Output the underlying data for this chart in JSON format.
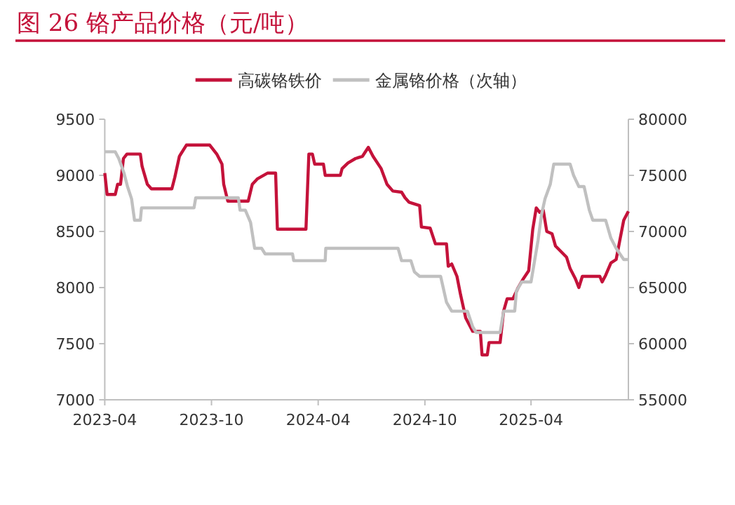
{
  "chart_data": {
    "type": "line",
    "title": "图 26 铬产品价格（元/吨）",
    "xlim": [
      "2023-04-01",
      "2025-09-15"
    ],
    "xticks": [
      "2023-04",
      "2023-10",
      "2024-04",
      "2024-10",
      "2025-04"
    ],
    "ylim": [
      7000,
      9500
    ],
    "yticks": [
      7000,
      7500,
      8000,
      8500,
      9000,
      9500
    ],
    "y2lim": [
      55000,
      80000
    ],
    "y2ticks": [
      55000,
      60000,
      65000,
      70000,
      75000,
      80000
    ],
    "legend": "top",
    "series": [
      {
        "name": "高碳铬铁价",
        "color": "#c4123a",
        "axis": "y",
        "x": [
          "2023-04-01",
          "2023-04-05",
          "2023-04-19",
          "2023-04-23",
          "2023-04-28",
          "2023-05-03",
          "2023-05-09",
          "2023-06-01",
          "2023-06-04",
          "2023-06-13",
          "2023-06-20",
          "2023-07-25",
          "2023-07-30",
          "2023-08-07",
          "2023-08-19",
          "2023-09-28",
          "2023-10-10",
          "2023-10-19",
          "2023-10-22",
          "2023-10-29",
          "2023-12-03",
          "2023-12-10",
          "2023-12-19",
          "2024-01-05",
          "2024-01-19",
          "2024-01-22",
          "2024-03-11",
          "2024-03-16",
          "2024-03-22",
          "2024-03-26",
          "2024-04-10",
          "2024-04-13",
          "2024-05-09",
          "2024-05-12",
          "2024-05-22",
          "2024-06-04",
          "2024-06-16",
          "2024-06-26",
          "2024-07-04",
          "2024-07-18",
          "2024-07-28",
          "2024-08-07",
          "2024-08-22",
          "2024-08-28",
          "2024-09-04",
          "2024-09-22",
          "2024-09-25",
          "2024-10-10",
          "2024-10-19",
          "2024-11-07",
          "2024-11-10",
          "2024-11-16",
          "2024-11-25",
          "2024-12-01",
          "2024-12-10",
          "2024-12-22",
          "2025-01-04",
          "2025-01-07",
          "2025-01-16",
          "2025-01-19",
          "2025-02-07",
          "2025-02-13",
          "2025-02-19",
          "2025-03-01",
          "2025-03-10",
          "2025-03-19",
          "2025-03-28",
          "2025-04-04",
          "2025-04-10",
          "2025-04-16",
          "2025-04-22",
          "2025-04-28",
          "2025-05-07",
          "2025-05-13",
          "2025-06-01",
          "2025-06-07",
          "2025-06-16",
          "2025-06-22",
          "2025-06-28",
          "2025-07-28",
          "2025-08-01",
          "2025-08-07",
          "2025-08-16",
          "2025-08-25",
          "2025-09-01",
          "2025-09-07",
          "2025-09-15"
        ],
        "values": [
          9020,
          8830,
          8830,
          8920,
          8920,
          9150,
          9190,
          9190,
          9080,
          8920,
          8880,
          8880,
          8980,
          9170,
          9270,
          9270,
          9190,
          9100,
          8920,
          8770,
          8770,
          8920,
          8970,
          9020,
          9020,
          8520,
          8520,
          9190,
          9190,
          9100,
          9100,
          9000,
          9000,
          9060,
          9110,
          9150,
          9170,
          9250,
          9170,
          9060,
          8920,
          8860,
          8850,
          8800,
          8760,
          8730,
          8540,
          8530,
          8390,
          8390,
          8190,
          8210,
          8100,
          7940,
          7730,
          7610,
          7610,
          7400,
          7400,
          7510,
          7510,
          7790,
          7900,
          7900,
          8000,
          8080,
          8150,
          8520,
          8710,
          8670,
          8690,
          8500,
          8480,
          8370,
          8270,
          8170,
          8080,
          8000,
          8100,
          8100,
          8050,
          8110,
          8220,
          8250,
          8440,
          8600,
          8680
        ]
      },
      {
        "name": "金属铬价格（次轴）",
        "color": "#c0c0c0",
        "axis": "y2",
        "x": [
          "2023-04-01",
          "2023-04-19",
          "2023-04-25",
          "2023-05-04",
          "2023-05-10",
          "2023-05-17",
          "2023-05-22",
          "2023-06-01",
          "2023-06-03",
          "2023-09-01",
          "2023-09-04",
          "2023-11-16",
          "2023-11-19",
          "2023-11-28",
          "2023-12-07",
          "2023-12-14",
          "2023-12-26",
          "2024-01-01",
          "2024-02-17",
          "2024-02-19",
          "2024-04-13",
          "2024-04-14",
          "2024-08-16",
          "2024-08-22",
          "2024-09-07",
          "2024-09-13",
          "2024-09-22",
          "2024-10-28",
          "2024-11-07",
          "2024-11-16",
          "2024-12-13",
          "2024-12-22",
          "2024-12-28",
          "2025-02-07",
          "2025-02-13",
          "2025-03-04",
          "2025-03-07",
          "2025-03-16",
          "2025-04-01",
          "2025-04-13",
          "2025-04-19",
          "2025-04-25",
          "2025-05-04",
          "2025-05-10",
          "2025-06-07",
          "2025-06-13",
          "2025-06-22",
          "2025-07-01",
          "2025-07-10",
          "2025-07-16",
          "2025-08-07",
          "2025-08-16",
          "2025-08-25",
          "2025-09-07",
          "2025-09-15"
        ],
        "values": [
          77100,
          77100,
          76500,
          75200,
          74000,
          72900,
          71000,
          71000,
          72100,
          72100,
          73000,
          73000,
          71900,
          71900,
          70800,
          68500,
          68500,
          68000,
          68000,
          67400,
          67400,
          68500,
          68500,
          67400,
          67400,
          66400,
          66000,
          66000,
          63700,
          62900,
          62900,
          61500,
          61000,
          61000,
          62900,
          62900,
          64700,
          65500,
          65500,
          69200,
          71500,
          72900,
          74200,
          76000,
          76000,
          75000,
          74000,
          74000,
          71900,
          71000,
          71000,
          69400,
          68500,
          67500,
          67500
        ]
      }
    ]
  }
}
